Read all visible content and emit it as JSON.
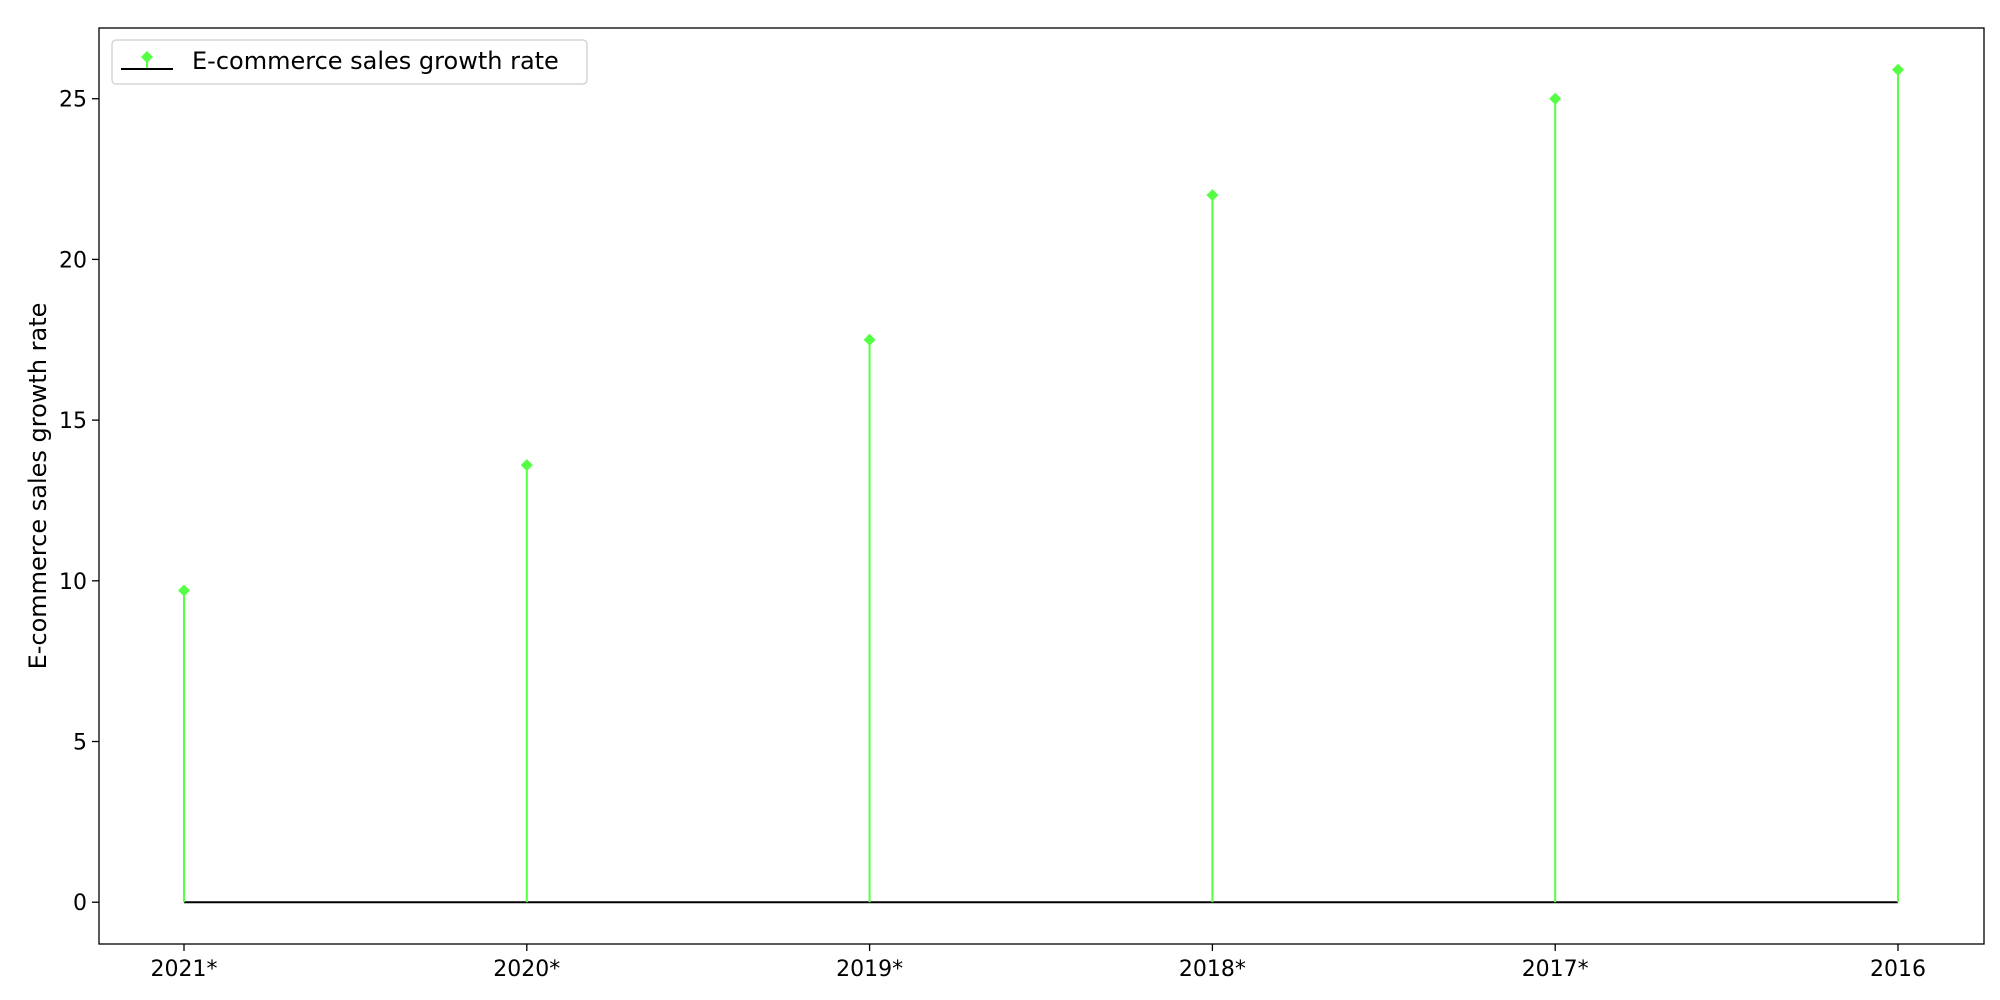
{
  "chart_data": {
    "type": "stem",
    "categories": [
      "2021*",
      "2020*",
      "2019*",
      "2018*",
      "2017*",
      "2016"
    ],
    "series": [
      {
        "name": "E-commerce sales growth rate",
        "values": [
          9.7,
          13.6,
          17.5,
          22.0,
          25.0,
          25.9
        ]
      }
    ],
    "title": "",
    "xlabel": "",
    "ylabel": "E-commerce sales growth rate",
    "ylim": [
      -1.3,
      27.2
    ],
    "yticks": [
      0,
      5,
      10,
      15,
      20,
      25
    ],
    "grid": false,
    "legend": "top-left",
    "colors": {
      "stem": "#55ff44",
      "marker": "#55ff44",
      "baseline": "#000000"
    }
  }
}
